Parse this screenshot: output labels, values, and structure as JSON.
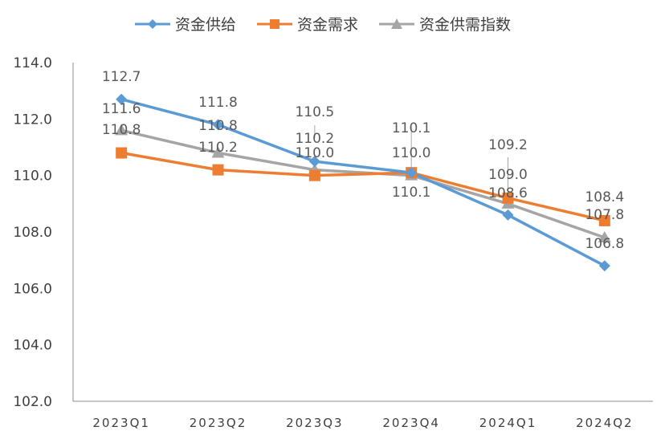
{
  "chart_data": {
    "type": "line",
    "categories": [
      "2023Q1",
      "2023Q2",
      "2023Q3",
      "2023Q4",
      "2024Q1",
      "2024Q2"
    ],
    "series": [
      {
        "name": "资金供给",
        "values": [
          112.7,
          111.8,
          110.5,
          110.1,
          108.6,
          106.8
        ],
        "color": "#5B9BD5",
        "marker": "diamond"
      },
      {
        "name": "资金需求",
        "values": [
          110.8,
          110.2,
          110.0,
          110.1,
          109.2,
          108.4
        ],
        "color": "#ED7D31",
        "marker": "square"
      },
      {
        "name": "资金供需指数",
        "values": [
          111.6,
          110.8,
          110.2,
          110.0,
          109.0,
          107.8
        ],
        "color": "#A5A5A5",
        "marker": "triangle"
      }
    ],
    "data_labels": [
      [
        "112.7",
        "111.8",
        "110.5",
        "110.1",
        "109.2",
        "108.4"
      ],
      [
        "111.6",
        "110.8",
        "110.2",
        "110.0",
        "109.0",
        "107.8"
      ],
      [
        "110.8",
        "110.2",
        "110.0",
        "110.1",
        "108.6",
        "106.8"
      ]
    ],
    "yticks": [
      "114.0",
      "112.0",
      "110.0",
      "108.0",
      "106.0",
      "104.0",
      "102.0"
    ],
    "ylim": [
      102,
      114
    ],
    "grid": false,
    "legend_position": "top"
  }
}
